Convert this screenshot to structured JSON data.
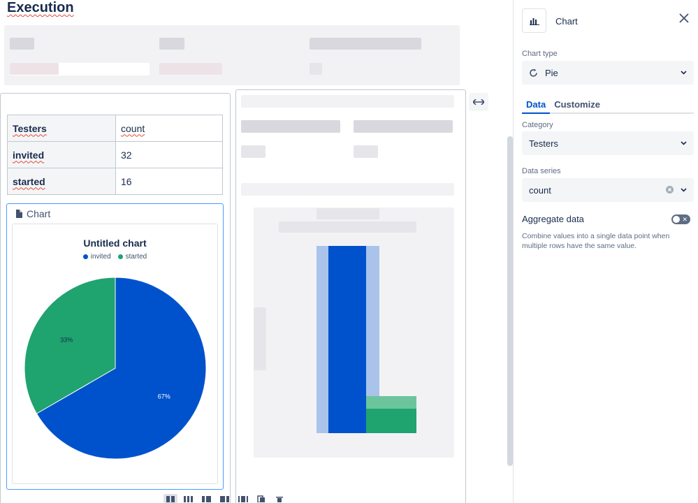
{
  "page": {
    "title": "Execution"
  },
  "table": {
    "header": {
      "label": "Testers",
      "value": "count"
    },
    "rows": [
      {
        "label": "invited",
        "value": "32"
      },
      {
        "label": "started",
        "value": "16"
      }
    ]
  },
  "chart_macro": {
    "label": "Chart"
  },
  "chart_data": {
    "type": "pie",
    "title": "Untitled chart",
    "categories": [
      "invited",
      "started"
    ],
    "values": [
      32,
      16
    ],
    "percent_labels": [
      "67%",
      "33%"
    ],
    "colors": [
      "#0052cc",
      "#1fa36f"
    ],
    "legend": "top"
  },
  "toolbar": {
    "icons": [
      "layout-full-icon",
      "layout-three-col-icon",
      "layout-left-icon",
      "layout-right-icon",
      "layout-wide-icon",
      "copy-icon",
      "delete-icon"
    ]
  },
  "sidebar": {
    "title": "Chart",
    "chart_type_label": "Chart type",
    "chart_type_value": "Pie",
    "tabs": [
      {
        "label": "Data",
        "active": true
      },
      {
        "label": "Customize",
        "active": false
      }
    ],
    "category_label": "Category",
    "category_value": "Testers",
    "data_series_label": "Data series",
    "data_series_value": "count",
    "aggregate_label": "Aggregate data",
    "aggregate_help": "Combine values into a single data point when multiple rows have the same value.",
    "accent": "#0052cc"
  }
}
